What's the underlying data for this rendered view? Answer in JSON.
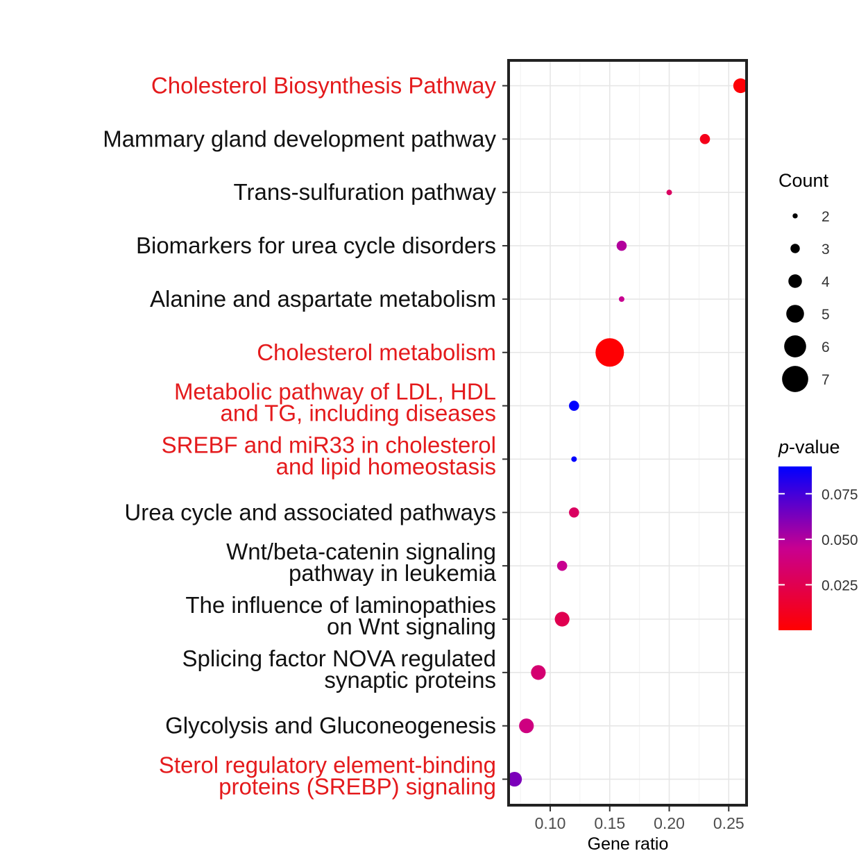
{
  "chart_data": {
    "type": "scatter",
    "xlabel": "Gene ratio",
    "xlim": [
      0.065,
      0.265
    ],
    "x_ticks": [
      "0.10",
      "0.15",
      "0.20",
      "0.25"
    ],
    "x_tick_values": [
      0.1,
      0.15,
      0.2,
      0.25
    ],
    "grid": true,
    "size_legend_title": "Count",
    "size_legend": [
      "2",
      "3",
      "4",
      "5",
      "6",
      "7"
    ],
    "color_legend_title_italic": "p",
    "color_legend_title_rest": "-value",
    "color_legend_ticks": [
      "0.075",
      "0.050",
      "0.025"
    ],
    "color_legend_tick_values": [
      0.075,
      0.05,
      0.025
    ],
    "color_low": "#ff0000",
    "color_high": "#0000ff",
    "highlight_color": "#e41a1c",
    "points": [
      {
        "label_lines": [
          "Cholesterol Biosynthesis Pathway"
        ],
        "highlight": true,
        "x": 0.26,
        "count": 4,
        "p": 0.002
      },
      {
        "label_lines": [
          "Mammary gland development pathway"
        ],
        "highlight": false,
        "x": 0.23,
        "count": 3,
        "p": 0.008
      },
      {
        "label_lines": [
          "Trans-sulfuration pathway"
        ],
        "highlight": false,
        "x": 0.2,
        "count": 2,
        "p": 0.03
      },
      {
        "label_lines": [
          "Biomarkers for urea cycle disorders"
        ],
        "highlight": false,
        "x": 0.16,
        "count": 3,
        "p": 0.05
      },
      {
        "label_lines": [
          "Alanine and aspartate metabolism"
        ],
        "highlight": false,
        "x": 0.16,
        "count": 2,
        "p": 0.045
      },
      {
        "label_lines": [
          "Cholesterol metabolism"
        ],
        "highlight": true,
        "x": 0.15,
        "count": 7,
        "p": 0.001
      },
      {
        "label_lines": [
          "Metabolic pathway of LDL, HDL",
          "and TG, including diseases"
        ],
        "highlight": true,
        "x": 0.12,
        "count": 3,
        "p": 0.09
      },
      {
        "label_lines": [
          "SREBF and miR33 in cholesterol",
          "and lipid homeostasis"
        ],
        "highlight": true,
        "x": 0.12,
        "count": 2,
        "p": 0.09
      },
      {
        "label_lines": [
          "Urea cycle and associated pathways"
        ],
        "highlight": false,
        "x": 0.12,
        "count": 3,
        "p": 0.03
      },
      {
        "label_lines": [
          "Wnt/beta-catenin signaling",
          "pathway in leukemia"
        ],
        "highlight": false,
        "x": 0.11,
        "count": 3,
        "p": 0.045
      },
      {
        "label_lines": [
          "The influence of laminopathies",
          "on Wnt signaling"
        ],
        "highlight": false,
        "x": 0.11,
        "count": 4,
        "p": 0.025
      },
      {
        "label_lines": [
          "Splicing factor NOVA regulated",
          "synaptic proteins"
        ],
        "highlight": false,
        "x": 0.09,
        "count": 4,
        "p": 0.035
      },
      {
        "label_lines": [
          "Glycolysis and Gluconeogenesis"
        ],
        "highlight": false,
        "x": 0.08,
        "count": 4,
        "p": 0.04
      },
      {
        "label_lines": [
          "Sterol regulatory element-binding",
          "proteins (SREBP) signaling"
        ],
        "highlight": true,
        "x": 0.07,
        "count": 4,
        "p": 0.062
      }
    ]
  }
}
